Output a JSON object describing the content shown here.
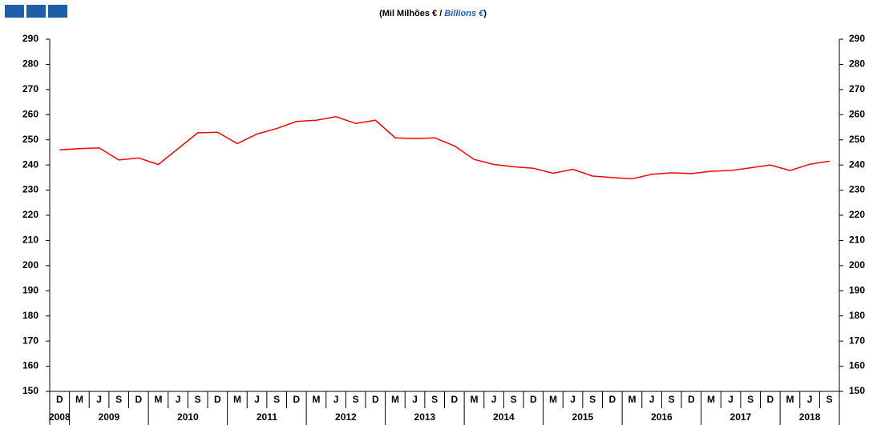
{
  "chart_data": {
    "type": "line",
    "title_parts": [
      "(Mil Milhões € / ",
      "Billions €",
      ")"
    ],
    "categories": [
      "D",
      "M",
      "J",
      "S",
      "D",
      "M",
      "J",
      "S",
      "D",
      "M",
      "J",
      "S",
      "D",
      "M",
      "J",
      "S",
      "D",
      "M",
      "J",
      "S",
      "D",
      "M",
      "J",
      "S",
      "D",
      "M",
      "J",
      "S",
      "D",
      "M",
      "J",
      "S",
      "D",
      "M",
      "J",
      "S",
      "D",
      "M",
      "J",
      "S"
    ],
    "groups": [
      {
        "label": "2008",
        "count": 1
      },
      {
        "label": "2009",
        "count": 4
      },
      {
        "label": "2010",
        "count": 4
      },
      {
        "label": "2011",
        "count": 4
      },
      {
        "label": "2012",
        "count": 4
      },
      {
        "label": "2013",
        "count": 4
      },
      {
        "label": "2014",
        "count": 4
      },
      {
        "label": "2015",
        "count": 4
      },
      {
        "label": "2016",
        "count": 4
      },
      {
        "label": "2017",
        "count": 4
      },
      {
        "label": "2018",
        "count": 3
      }
    ],
    "series": [
      {
        "color": "#ff0000",
        "values": [
          246,
          246.5,
          246.8,
          242,
          242.8,
          240.2,
          246.5,
          252.8,
          253,
          248.5,
          252.3,
          254.5,
          257.3,
          257.8,
          259.2,
          256.5,
          257.8,
          250.8,
          250.5,
          250.8,
          247.6,
          242.2,
          240.2,
          239.3,
          238.7,
          236.7,
          238.3,
          235.6,
          235,
          234.5,
          236.3,
          236.9,
          236.6,
          237.5,
          237.8,
          238.9,
          240,
          237.8,
          240.3,
          241.5
        ]
      }
    ],
    "ylim": [
      150,
      290
    ],
    "yticks": [
      150,
      160,
      170,
      180,
      190,
      200,
      210,
      220,
      230,
      240,
      250,
      260,
      270,
      280,
      290
    ]
  }
}
